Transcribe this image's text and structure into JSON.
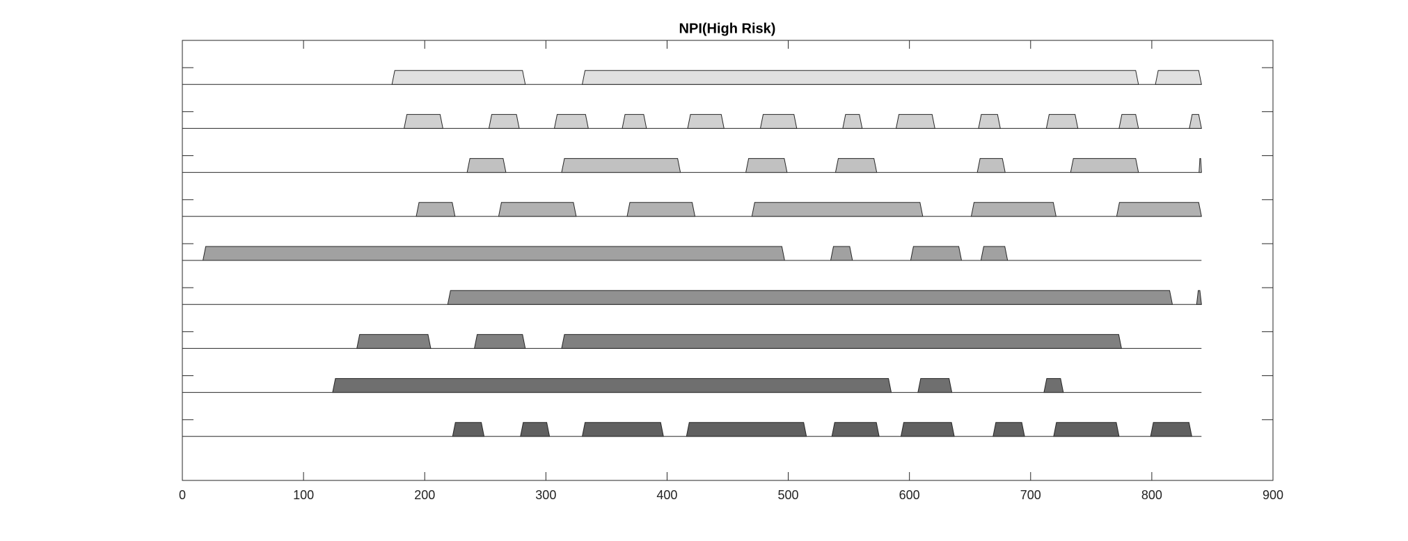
{
  "chart_data": {
    "type": "timeline",
    "title": "NPI(High Risk)",
    "xlim": [
      0,
      900
    ],
    "xticks": [
      0,
      100,
      200,
      300,
      400,
      500,
      600,
      700,
      800,
      900
    ],
    "series": [
      {
        "color": "#e0e0e0",
        "values": [
          [
            173,
            283
          ],
          [
            330,
            789
          ],
          [
            803,
            841
          ]
        ]
      },
      {
        "color": "#d0d0d0",
        "values": [
          [
            183,
            215
          ],
          [
            253,
            278
          ],
          [
            307,
            335
          ],
          [
            363,
            383
          ],
          [
            417,
            447
          ],
          [
            477,
            507
          ],
          [
            545,
            561
          ],
          [
            589,
            621
          ],
          [
            657,
            675
          ],
          [
            713,
            739
          ],
          [
            773,
            789
          ],
          [
            831,
            841
          ]
        ]
      },
      {
        "color": "#c1c1c1",
        "values": [
          [
            235,
            267
          ],
          [
            313,
            411
          ],
          [
            465,
            499
          ],
          [
            539,
            573
          ],
          [
            656,
            679
          ],
          [
            733,
            789
          ],
          [
            839,
            841
          ]
        ]
      },
      {
        "color": "#b1b1b1",
        "values": [
          [
            193,
            225
          ],
          [
            261,
            325
          ],
          [
            367,
            423
          ],
          [
            470,
            611
          ],
          [
            651,
            721
          ],
          [
            771,
            841
          ]
        ]
      },
      {
        "color": "#a1a1a1",
        "values": [
          [
            17,
            497
          ],
          [
            535,
            553
          ],
          [
            601,
            643
          ],
          [
            659,
            681
          ]
        ]
      },
      {
        "color": "#919191",
        "values": [
          [
            219,
            817
          ],
          [
            837,
            841
          ]
        ]
      },
      {
        "color": "#808080",
        "values": [
          [
            144,
            205
          ],
          [
            241,
            283
          ],
          [
            313,
            775
          ]
        ]
      },
      {
        "color": "#6f6f6f",
        "values": [
          [
            124,
            585
          ],
          [
            607,
            635
          ],
          [
            711,
            727
          ]
        ]
      },
      {
        "color": "#606060",
        "values": [
          [
            223,
            249
          ],
          [
            279,
            303
          ],
          [
            330,
            397
          ],
          [
            416,
            515
          ],
          [
            536,
            575
          ],
          [
            593,
            637
          ],
          [
            669,
            695
          ],
          [
            719,
            773
          ],
          [
            799,
            833
          ]
        ]
      }
    ]
  }
}
